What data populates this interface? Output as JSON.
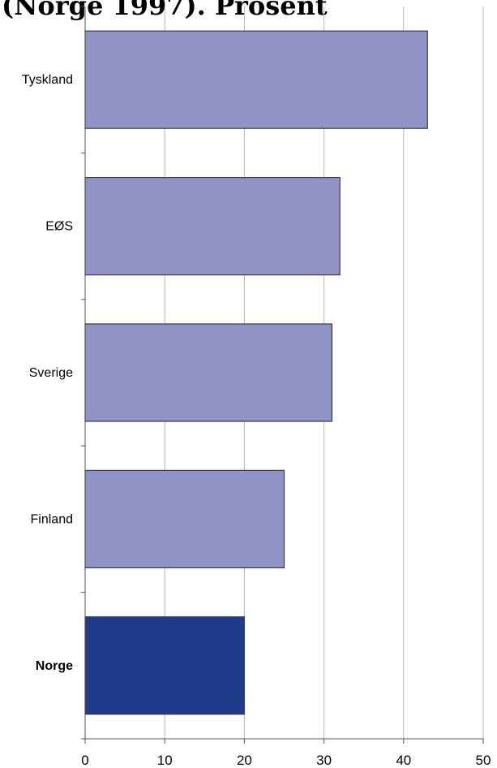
{
  "title": "(Norge 1997). Prosent",
  "chart_data": {
    "type": "bar",
    "orientation": "horizontal",
    "title": "(Norge 1997). Prosent",
    "categories": [
      "Tyskland",
      "EØS",
      "Sverige",
      "Finland",
      "Norge"
    ],
    "values": [
      43,
      32,
      31,
      25,
      20
    ],
    "highlight": "Norge",
    "xlim": [
      0,
      50
    ],
    "xticks": [
      0,
      10,
      20,
      30,
      40,
      50
    ],
    "grid": "vertical",
    "xlabel": "",
    "ylabel": "",
    "colors": {
      "bar": "#8f93c6",
      "highlight": "#1e3c8a",
      "grid": "#b5b5b5",
      "axis": "#555555"
    }
  }
}
